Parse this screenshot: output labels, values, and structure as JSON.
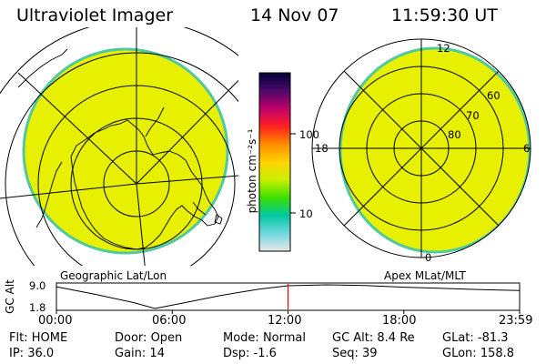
{
  "header": {
    "title": "Ultraviolet Imager",
    "date": "14 Nov 07",
    "time": "11:59:30 UT"
  },
  "colorbar": {
    "unit_label": "photon cm⁻²s⁻¹",
    "ticks": [
      "100",
      "10"
    ],
    "stops": [
      "#000033",
      "#4a0a6a",
      "#c0006a",
      "#ff2020",
      "#ff8c00",
      "#ffd400",
      "#c8f000",
      "#3ce000",
      "#00c8a0",
      "#70d8e0",
      "#e8e8e8"
    ]
  },
  "panels": {
    "geo_caption": "Geographic Lat/Lon",
    "apex_caption": "Apex MLat/MLT",
    "apex_lat_labels": [
      "60",
      "70",
      "80"
    ],
    "apex_mlt_labels": [
      "12",
      "18",
      "6",
      "0"
    ],
    "fill_color": "#e6f000",
    "edge_color": "#4ec9a0"
  },
  "altitude_plot": {
    "ylabel": "GC Alt",
    "ytick_top": "9.0",
    "ytick_bottom": "1.8",
    "xticks": [
      "00:00",
      "06:00",
      "12:00",
      "18:00",
      "23:59"
    ],
    "current_marker_hour": 12.0,
    "marker_color": "#e00000"
  },
  "status": {
    "row1": [
      {
        "label": "Flt:",
        "value": "HOME"
      },
      {
        "label": "Door:",
        "value": "Open"
      },
      {
        "label": "Mode:",
        "value": "Normal"
      },
      {
        "label": "GC Alt:",
        "value": "8.4 Re"
      },
      {
        "label": "GLat:",
        "value": "-81.3"
      }
    ],
    "row2": [
      {
        "label": "IP:",
        "value": "36.0"
      },
      {
        "label": "Gain:",
        "value": "14"
      },
      {
        "label": "Dsp:",
        "value": "-1.6"
      },
      {
        "label": "Seq:",
        "value": "39"
      },
      {
        "label": "GLon:",
        "value": "158.8"
      }
    ]
  }
}
